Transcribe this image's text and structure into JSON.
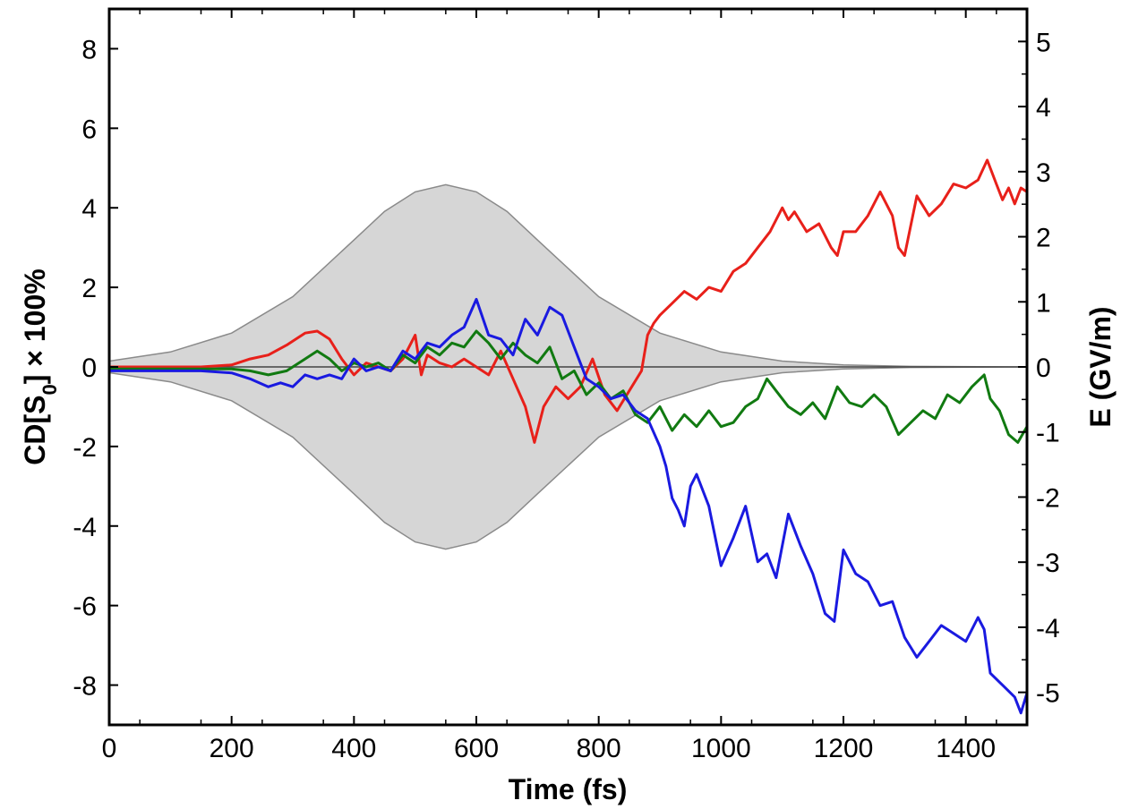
{
  "chart_data": {
    "type": "line",
    "title": "",
    "xlabel": "Time (fs)",
    "ylabel": "CD[S0] × 100%",
    "ylabel_parts": {
      "pre": "CD[S",
      "sub": "0",
      "post": "] × 100%"
    },
    "y2label": "E (GV/m)",
    "xlim": [
      0,
      1500
    ],
    "ylim": [
      -9,
      9
    ],
    "y2lim": [
      -5.5,
      5.5
    ],
    "xticks": [
      0,
      200,
      400,
      600,
      800,
      1000,
      1200,
      1400
    ],
    "yticks": [
      -8,
      -6,
      -4,
      -2,
      0,
      2,
      4,
      6,
      8
    ],
    "y2ticks": [
      -5,
      -4,
      -3,
      -2,
      -1,
      0,
      1,
      2,
      3,
      4,
      5
    ],
    "grid": false,
    "legend": "none",
    "colors": {
      "red": "#e8201a",
      "green": "#117a11",
      "blue": "#1a1ae0",
      "envelope": "#d6d6d6",
      "envelope_edge": "#8a8a8a",
      "zero_line": "#444444"
    },
    "envelope": {
      "name": "",
      "unit_axis": "right",
      "x": [
        0,
        100,
        200,
        300,
        400,
        450,
        500,
        550,
        600,
        650,
        700,
        800,
        900,
        1000,
        1100,
        1200,
        1300,
        1500
      ],
      "upper": [
        0.09,
        0.23,
        0.52,
        1.08,
        1.95,
        2.39,
        2.69,
        2.8,
        2.69,
        2.39,
        1.95,
        1.08,
        0.52,
        0.23,
        0.09,
        0.03,
        0.01,
        0.0
      ]
    },
    "series": [
      {
        "color_key": "red",
        "x": [
          0,
          100,
          150,
          200,
          230,
          260,
          290,
          320,
          340,
          360,
          380,
          400,
          420,
          440,
          460,
          480,
          500,
          510,
          520,
          540,
          560,
          580,
          600,
          620,
          640,
          660,
          680,
          695,
          710,
          730,
          750,
          770,
          790,
          810,
          830,
          850,
          870,
          880,
          890,
          900,
          920,
          940,
          960,
          980,
          1000,
          1020,
          1040,
          1060,
          1080,
          1100,
          1110,
          1120,
          1140,
          1160,
          1180,
          1190,
          1200,
          1220,
          1240,
          1260,
          1280,
          1290,
          1300,
          1320,
          1340,
          1360,
          1380,
          1400,
          1420,
          1435,
          1450,
          1460,
          1470,
          1480,
          1490,
          1500
        ],
        "y": [
          0.0,
          0.0,
          0.0,
          0.05,
          0.2,
          0.3,
          0.55,
          0.85,
          0.9,
          0.7,
          0.2,
          -0.2,
          0.1,
          0.0,
          -0.1,
          0.2,
          0.8,
          -0.2,
          0.3,
          0.1,
          0.0,
          0.2,
          0.0,
          -0.2,
          0.4,
          -0.3,
          -1.0,
          -1.9,
          -1.0,
          -0.5,
          -0.8,
          -0.5,
          0.2,
          -0.7,
          -1.1,
          -0.6,
          -0.1,
          0.8,
          1.1,
          1.3,
          1.6,
          1.9,
          1.7,
          2.0,
          1.9,
          2.4,
          2.6,
          3.0,
          3.4,
          4.0,
          3.7,
          3.9,
          3.4,
          3.6,
          3.0,
          2.8,
          3.4,
          3.4,
          3.8,
          4.4,
          3.8,
          3.0,
          2.8,
          4.3,
          3.8,
          4.1,
          4.6,
          4.5,
          4.7,
          5.2,
          4.6,
          4.2,
          4.5,
          4.1,
          4.5,
          4.4
        ]
      },
      {
        "color_key": "green",
        "x": [
          0,
          100,
          150,
          200,
          230,
          260,
          290,
          320,
          340,
          360,
          380,
          400,
          420,
          440,
          460,
          480,
          500,
          520,
          540,
          560,
          580,
          600,
          620,
          640,
          660,
          680,
          700,
          720,
          740,
          760,
          780,
          800,
          820,
          840,
          860,
          880,
          900,
          920,
          940,
          960,
          980,
          1000,
          1020,
          1040,
          1060,
          1075,
          1090,
          1110,
          1130,
          1150,
          1170,
          1190,
          1210,
          1230,
          1250,
          1270,
          1290,
          1310,
          1330,
          1350,
          1370,
          1390,
          1410,
          1430,
          1440,
          1455,
          1470,
          1485,
          1500
        ],
        "y": [
          -0.05,
          -0.05,
          -0.05,
          -0.05,
          -0.1,
          -0.2,
          -0.1,
          0.2,
          0.4,
          0.2,
          -0.1,
          0.1,
          0.0,
          0.1,
          -0.1,
          0.3,
          0.1,
          0.5,
          0.3,
          0.6,
          0.5,
          0.9,
          0.6,
          0.2,
          0.6,
          0.3,
          0.1,
          0.5,
          -0.3,
          -0.1,
          -0.7,
          -0.4,
          -0.8,
          -0.6,
          -1.2,
          -1.4,
          -1.0,
          -1.6,
          -1.2,
          -1.5,
          -1.1,
          -1.5,
          -1.4,
          -1.0,
          -0.8,
          -0.3,
          -0.6,
          -1.0,
          -1.2,
          -0.9,
          -1.3,
          -0.5,
          -0.9,
          -1.0,
          -0.7,
          -1.0,
          -1.7,
          -1.4,
          -1.1,
          -1.3,
          -0.7,
          -0.9,
          -0.5,
          -0.2,
          -0.8,
          -1.1,
          -1.7,
          -1.9,
          -1.5
        ]
      },
      {
        "color_key": "blue",
        "x": [
          0,
          100,
          150,
          200,
          230,
          260,
          280,
          300,
          320,
          340,
          360,
          380,
          400,
          420,
          440,
          460,
          480,
          500,
          520,
          540,
          560,
          580,
          600,
          620,
          640,
          660,
          680,
          700,
          720,
          740,
          760,
          780,
          800,
          820,
          840,
          860,
          880,
          900,
          910,
          920,
          930,
          940,
          950,
          960,
          980,
          1000,
          1020,
          1040,
          1060,
          1075,
          1090,
          1110,
          1130,
          1150,
          1170,
          1185,
          1200,
          1220,
          1240,
          1260,
          1280,
          1300,
          1320,
          1340,
          1360,
          1380,
          1400,
          1420,
          1430,
          1440,
          1460,
          1480,
          1490,
          1500
        ],
        "y": [
          -0.1,
          -0.1,
          -0.1,
          -0.15,
          -0.3,
          -0.5,
          -0.4,
          -0.5,
          -0.2,
          -0.3,
          -0.2,
          -0.3,
          0.2,
          -0.1,
          0.0,
          -0.1,
          0.4,
          0.2,
          0.6,
          0.5,
          0.8,
          1.0,
          1.7,
          0.8,
          0.7,
          0.3,
          1.2,
          0.8,
          1.5,
          1.3,
          0.5,
          -0.3,
          -0.5,
          -0.8,
          -0.7,
          -1.1,
          -1.3,
          -2.0,
          -2.5,
          -3.3,
          -3.6,
          -4.0,
          -3.0,
          -2.7,
          -3.5,
          -5.0,
          -4.3,
          -3.5,
          -4.9,
          -4.7,
          -5.3,
          -3.7,
          -4.5,
          -5.2,
          -6.2,
          -6.4,
          -4.6,
          -5.2,
          -5.4,
          -6.0,
          -5.9,
          -6.8,
          -7.3,
          -6.9,
          -6.5,
          -6.7,
          -6.9,
          -6.3,
          -6.6,
          -7.7,
          -8.0,
          -8.3,
          -8.7,
          -8.2
        ]
      }
    ]
  }
}
